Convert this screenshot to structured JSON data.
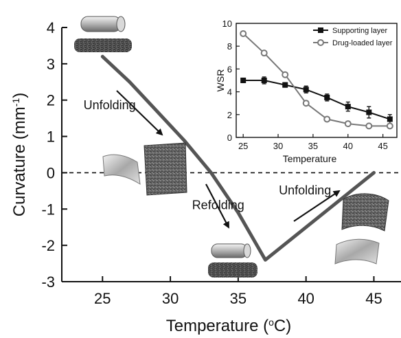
{
  "chart_data": [
    {
      "type": "line",
      "xlabel": "Temperature",
      "xlabel_unit_base": "(",
      "xlabel_unit_sup": "o",
      "xlabel_unit_tail": "C)",
      "ylabel": "Curvature (mm",
      "ylabel_sup": "-1",
      "ylabel_tail": ")",
      "xlim": [
        22,
        47
      ],
      "ylim": [
        -3,
        4
      ],
      "xticks": [
        25,
        30,
        35,
        40,
        45
      ],
      "yticks": [
        4,
        3,
        2,
        1,
        0,
        -1,
        -2,
        -3
      ],
      "reference_line": {
        "y": 0,
        "style": "dashed"
      },
      "series": [
        {
          "color": "#555555",
          "x": [
            25,
            27,
            29,
            31,
            33,
            35,
            37,
            45
          ],
          "y": [
            3.2,
            2.5,
            1.7,
            0.9,
            0.0,
            -1.1,
            -2.4,
            0.0
          ]
        }
      ],
      "annotations": [
        {
          "text": "Unfolding",
          "x": 23.6,
          "y": 1.75
        },
        {
          "text": "Refolding",
          "x": 31.6,
          "y": -1.0
        },
        {
          "text": "Unfolding",
          "x": 38.0,
          "y": -0.6
        }
      ]
    },
    {
      "type": "line",
      "xlabel": "Temperature",
      "ylabel": "WSR",
      "xlim": [
        24,
        47
      ],
      "ylim": [
        0,
        10
      ],
      "xticks": [
        25,
        30,
        35,
        40,
        45
      ],
      "yticks": [
        0,
        2,
        4,
        6,
        8,
        10
      ],
      "legend_position": "top-right",
      "series": [
        {
          "name": "Supporting layer",
          "marker": "square",
          "color": "#111111",
          "x": [
            25,
            28,
            31,
            34,
            37,
            40,
            43,
            46
          ],
          "y": [
            5.0,
            5.0,
            4.6,
            4.2,
            3.5,
            2.7,
            2.2,
            1.6
          ],
          "error": [
            0.2,
            0.3,
            0.2,
            0.3,
            0.3,
            0.4,
            0.5,
            0.4
          ]
        },
        {
          "name": "Drug-loaded layer",
          "marker": "circle",
          "color": "#777777",
          "x": [
            25,
            28,
            31,
            34,
            37,
            40,
            43,
            46
          ],
          "y": [
            9.1,
            7.4,
            5.5,
            3.0,
            1.6,
            1.2,
            1.0,
            1.0
          ],
          "error": [
            0.2,
            0.1,
            0.1,
            0.1,
            0.1,
            0.1,
            0.1,
            0.1
          ]
        }
      ]
    }
  ],
  "icons": [
    "cylinder-illustration",
    "fiber-bundle-illustration",
    "curved-sheet-illustration",
    "fibrous-mat-illustration"
  ]
}
